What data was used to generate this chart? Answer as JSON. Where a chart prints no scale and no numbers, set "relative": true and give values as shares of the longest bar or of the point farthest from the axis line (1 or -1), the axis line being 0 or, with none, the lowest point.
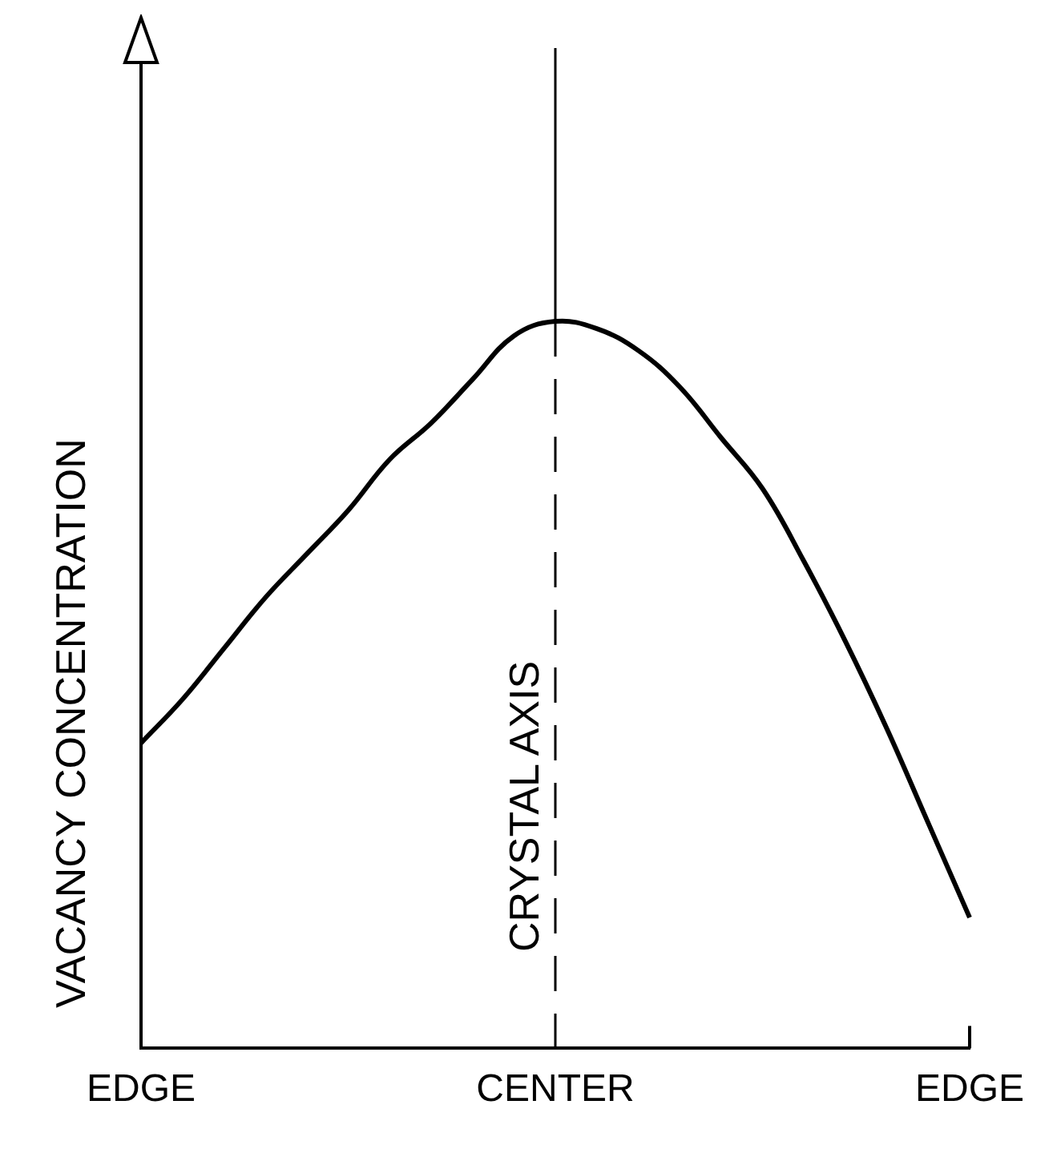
{
  "chart_data": {
    "type": "line",
    "ylabel": "VACANCY CONCENTRATION",
    "relative": true,
    "grid": false,
    "legend": false,
    "marker": "none",
    "categories": [
      "EDGE",
      null,
      null,
      null,
      null,
      null,
      null,
      null,
      null,
      null,
      "CENTER",
      null,
      null,
      null,
      null,
      null,
      null,
      null,
      null,
      null,
      "EDGE"
    ],
    "series": [
      {
        "color": "#000000",
        "values": [
          0.42,
          0.48,
          0.55,
          0.62,
          0.68,
          0.74,
          0.81,
          0.86,
          0.92,
          0.98,
          1,
          0.99,
          0.96,
          0.91,
          0.84,
          0.77,
          0.67,
          0.56,
          0.44,
          0.31,
          0.18
        ]
      }
    ],
    "ref_lines": [
      {
        "axis": "x",
        "value": "CENTER",
        "label": "CRYSTAL AXIS",
        "color": "#000000"
      }
    ]
  }
}
